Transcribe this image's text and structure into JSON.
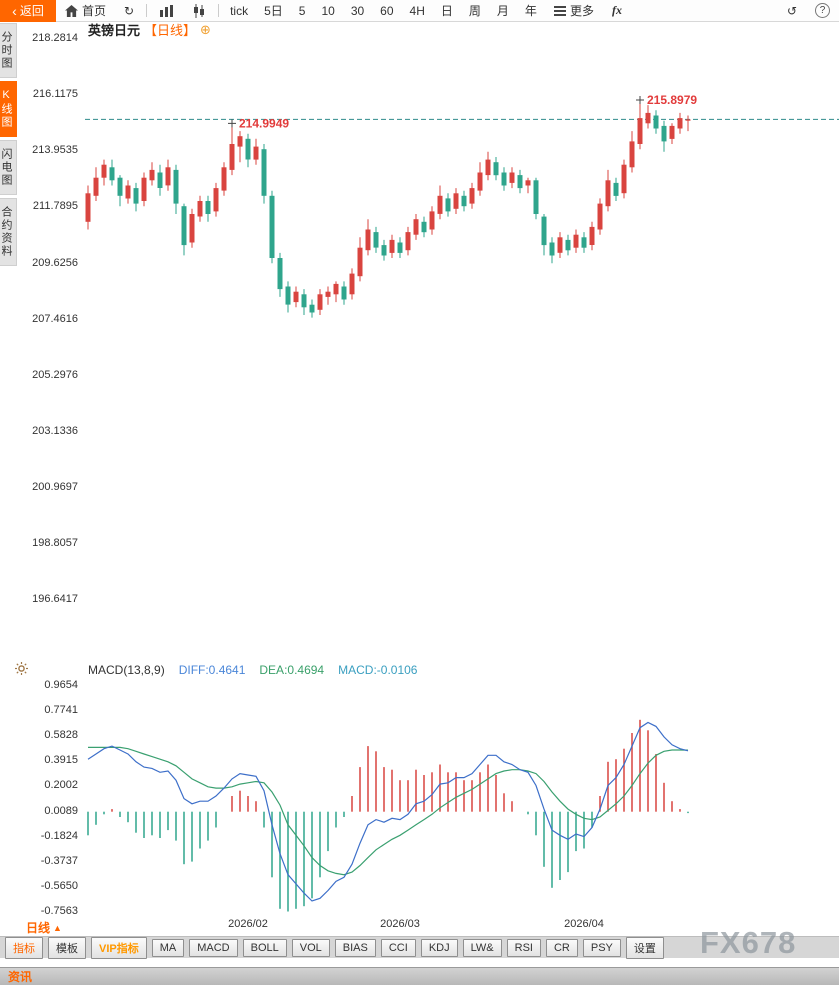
{
  "topbar": {
    "back": "返回",
    "home": "首页",
    "periods": [
      "tick",
      "5日",
      "5",
      "10",
      "30",
      "60",
      "4H",
      "日",
      "周",
      "月",
      "年"
    ],
    "more": "更多",
    "fx": "fx"
  },
  "icons": {
    "back_arrow": "‹",
    "refresh": "↻",
    "undo": "↺",
    "help": "?",
    "add_circle": "⊕",
    "triangle_up": "▲"
  },
  "left_rail": {
    "items": [
      {
        "label": "分时图",
        "active": false
      },
      {
        "label": "K线图",
        "active": true
      },
      {
        "label": "闪电图",
        "active": false
      },
      {
        "label": "合约资料",
        "active": false
      }
    ]
  },
  "chart_header": {
    "symbol": "英镑日元",
    "period": "【日线】"
  },
  "macd_header": {
    "title": "MACD(13,8,9)",
    "diff": "DIFF:0.4641",
    "dea": "DEA:0.4694",
    "macd": "MACD:-0.0106"
  },
  "bottom": {
    "period_tab": "日线",
    "tabs": [
      {
        "label": "指标"
      },
      {
        "label": "模板"
      },
      {
        "label": "VIP指标"
      },
      {
        "label": "MA"
      },
      {
        "label": "MACD"
      },
      {
        "label": "BOLL"
      },
      {
        "label": "VOL"
      },
      {
        "label": "BIAS"
      },
      {
        "label": "CCI"
      },
      {
        "label": "KDJ"
      },
      {
        "label": "LW&"
      },
      {
        "label": "RSI"
      },
      {
        "label": "CR"
      },
      {
        "label": "PSY"
      },
      {
        "label": "设置"
      }
    ]
  },
  "watermark": "FX678",
  "statusbar": {
    "label": "资讯"
  },
  "colors": {
    "up": "#d9443f",
    "down": "#2fa58c",
    "accent": "#ff6600",
    "diff_line": "#3d6fc9",
    "dea_line": "#3aa070",
    "dashed_line": "#2e8b8b",
    "annotation": "#e23b3b"
  },
  "chart_data": {
    "type": "candlestick",
    "title": "英镑日元 日线",
    "x_step": 8,
    "price_range": [
      195.6,
      218.6
    ],
    "price_ticks": [
      "218.2814",
      "216.1175",
      "213.9535",
      "211.7895",
      "209.6256",
      "207.4616",
      "205.2976",
      "203.1336",
      "200.9697",
      "198.8057",
      "196.6417"
    ],
    "last_price_line": 215.15,
    "annotations": [
      {
        "index": 18,
        "price": 214.9949,
        "label": "214.9949"
      },
      {
        "index": 69,
        "price": 215.8979,
        "label": "215.8979"
      }
    ],
    "x_ticks": [
      {
        "index": 20,
        "label": "2026/02"
      },
      {
        "index": 39,
        "label": "2026/03"
      },
      {
        "index": 62,
        "label": "2026/04"
      }
    ],
    "candles": [
      [
        211.2,
        212.6,
        210.9,
        212.3
      ],
      [
        212.2,
        213.3,
        212.0,
        212.9
      ],
      [
        212.9,
        213.6,
        212.6,
        213.4
      ],
      [
        213.3,
        213.6,
        212.6,
        212.8
      ],
      [
        212.9,
        213.0,
        211.8,
        212.2
      ],
      [
        212.1,
        212.8,
        211.9,
        212.6
      ],
      [
        212.5,
        212.7,
        211.6,
        211.9
      ],
      [
        212.0,
        213.1,
        211.8,
        212.9
      ],
      [
        212.8,
        213.5,
        212.6,
        213.2
      ],
      [
        213.1,
        213.4,
        212.2,
        212.5
      ],
      [
        212.6,
        213.6,
        212.4,
        213.3
      ],
      [
        213.2,
        213.4,
        211.5,
        211.9
      ],
      [
        211.8,
        211.9,
        209.9,
        210.3
      ],
      [
        210.4,
        211.7,
        210.2,
        211.5
      ],
      [
        211.4,
        212.2,
        211.2,
        212.0
      ],
      [
        212.0,
        212.2,
        211.2,
        211.5
      ],
      [
        211.6,
        212.7,
        211.4,
        212.5
      ],
      [
        212.4,
        213.5,
        212.2,
        213.3
      ],
      [
        213.2,
        214.99,
        213.0,
        214.2
      ],
      [
        214.1,
        214.7,
        213.5,
        214.5
      ],
      [
        214.4,
        214.6,
        213.3,
        213.6
      ],
      [
        213.6,
        214.4,
        213.4,
        214.1
      ],
      [
        214.0,
        214.2,
        211.9,
        212.2
      ],
      [
        212.2,
        212.4,
        209.6,
        209.8
      ],
      [
        209.8,
        210.0,
        208.3,
        208.6
      ],
      [
        208.7,
        208.9,
        207.7,
        208.0
      ],
      [
        208.1,
        208.7,
        207.9,
        208.5
      ],
      [
        208.4,
        208.6,
        207.6,
        207.9
      ],
      [
        208.0,
        208.2,
        207.5,
        207.7
      ],
      [
        207.8,
        208.6,
        207.6,
        208.4
      ],
      [
        208.3,
        208.7,
        208.0,
        208.5
      ],
      [
        208.4,
        208.9,
        208.1,
        208.8
      ],
      [
        208.7,
        208.9,
        208.0,
        208.2
      ],
      [
        208.4,
        209.4,
        208.2,
        209.2
      ],
      [
        209.1,
        210.6,
        208.9,
        210.2
      ],
      [
        210.1,
        211.3,
        209.9,
        210.9
      ],
      [
        210.8,
        211.0,
        210.0,
        210.2
      ],
      [
        210.3,
        210.5,
        209.7,
        209.9
      ],
      [
        210.0,
        210.7,
        209.8,
        210.5
      ],
      [
        210.4,
        210.6,
        209.8,
        210.0
      ],
      [
        210.1,
        211.0,
        209.9,
        210.8
      ],
      [
        210.7,
        211.5,
        210.5,
        211.3
      ],
      [
        211.2,
        211.4,
        210.6,
        210.8
      ],
      [
        210.9,
        211.8,
        210.7,
        211.6
      ],
      [
        211.5,
        212.6,
        211.3,
        212.2
      ],
      [
        212.1,
        212.3,
        211.4,
        211.6
      ],
      [
        211.7,
        212.5,
        211.5,
        212.3
      ],
      [
        212.2,
        212.4,
        211.6,
        211.8
      ],
      [
        211.9,
        212.7,
        211.7,
        212.5
      ],
      [
        212.4,
        213.5,
        212.2,
        213.1
      ],
      [
        213.0,
        213.9,
        212.8,
        213.6
      ],
      [
        213.5,
        213.7,
        212.8,
        213.0
      ],
      [
        213.1,
        213.3,
        212.4,
        212.6
      ],
      [
        212.7,
        213.3,
        212.5,
        213.1
      ],
      [
        213.0,
        213.2,
        212.3,
        212.5
      ],
      [
        212.6,
        212.9,
        212.3,
        212.8
      ],
      [
        212.8,
        212.9,
        211.3,
        211.5
      ],
      [
        211.4,
        211.5,
        209.9,
        210.3
      ],
      [
        210.4,
        210.6,
        209.6,
        209.9
      ],
      [
        210.0,
        210.8,
        209.8,
        210.6
      ],
      [
        210.5,
        210.7,
        209.9,
        210.1
      ],
      [
        210.2,
        210.9,
        210.0,
        210.7
      ],
      [
        210.6,
        210.8,
        210.0,
        210.2
      ],
      [
        210.3,
        211.2,
        210.1,
        211.0
      ],
      [
        210.9,
        212.1,
        210.7,
        211.9
      ],
      [
        211.8,
        213.2,
        211.6,
        212.8
      ],
      [
        212.7,
        212.9,
        212.0,
        212.2
      ],
      [
        212.3,
        213.6,
        212.1,
        213.4
      ],
      [
        213.3,
        214.7,
        213.1,
        214.3
      ],
      [
        214.2,
        215.9,
        214.0,
        215.2
      ],
      [
        215.0,
        215.7,
        214.8,
        215.4
      ],
      [
        215.3,
        215.5,
        214.6,
        214.8
      ],
      [
        214.9,
        215.1,
        213.9,
        214.3
      ],
      [
        214.4,
        215.0,
        214.2,
        214.9
      ],
      [
        214.8,
        215.4,
        214.6,
        215.2
      ],
      [
        215.1,
        215.3,
        214.7,
        215.15
      ]
    ],
    "macd": {
      "params": "MACD(13,8,9)",
      "ticks": [
        "0.9654",
        "0.7741",
        "0.5828",
        "0.3915",
        "0.2002",
        "0.0089",
        "-0.1824",
        "-0.3737",
        "-0.5650",
        "-0.7563"
      ],
      "range": [
        -0.787,
        1.0035
      ],
      "diff": [
        0.4,
        0.44,
        0.48,
        0.5,
        0.47,
        0.44,
        0.38,
        0.34,
        0.33,
        0.3,
        0.31,
        0.24,
        0.1,
        0.06,
        0.08,
        0.08,
        0.12,
        0.18,
        0.25,
        0.29,
        0.28,
        0.27,
        0.16,
        -0.1,
        -0.32,
        -0.48,
        -0.55,
        -0.62,
        -0.68,
        -0.66,
        -0.6,
        -0.53,
        -0.5,
        -0.4,
        -0.24,
        -0.1,
        -0.06,
        -0.08,
        -0.05,
        -0.06,
        -0.02,
        0.06,
        0.08,
        0.13,
        0.21,
        0.22,
        0.26,
        0.26,
        0.29,
        0.36,
        0.43,
        0.43,
        0.38,
        0.36,
        0.32,
        0.3,
        0.2,
        0.02,
        -0.14,
        -0.18,
        -0.21,
        -0.17,
        -0.19,
        -0.12,
        0.02,
        0.2,
        0.26,
        0.36,
        0.5,
        0.64,
        0.68,
        0.65,
        0.57,
        0.51,
        0.48,
        0.4641
      ],
      "dea": [
        0.49,
        0.49,
        0.49,
        0.49,
        0.49,
        0.48,
        0.46,
        0.44,
        0.42,
        0.4,
        0.38,
        0.35,
        0.3,
        0.25,
        0.22,
        0.19,
        0.18,
        0.18,
        0.19,
        0.21,
        0.22,
        0.23,
        0.22,
        0.15,
        0.05,
        -0.1,
        -0.18,
        -0.26,
        -0.35,
        -0.41,
        -0.45,
        -0.47,
        -0.48,
        -0.46,
        -0.41,
        -0.35,
        -0.29,
        -0.25,
        -0.21,
        -0.18,
        -0.14,
        -0.1,
        -0.06,
        -0.02,
        0.03,
        0.07,
        0.11,
        0.14,
        0.17,
        0.21,
        0.25,
        0.29,
        0.31,
        0.32,
        0.32,
        0.31,
        0.29,
        0.23,
        0.15,
        0.08,
        0.02,
        -0.02,
        -0.05,
        -0.06,
        -0.04,
        0.01,
        0.06,
        0.12,
        0.2,
        0.29,
        0.37,
        0.43,
        0.46,
        0.47,
        0.47,
        0.4694
      ]
    }
  }
}
